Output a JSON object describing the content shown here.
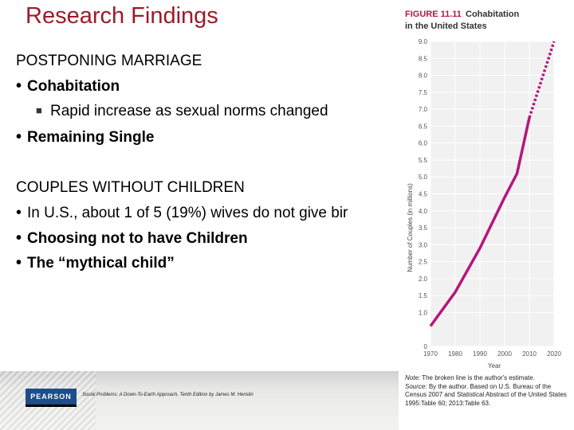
{
  "slide": {
    "title": "Research Findings",
    "section1": "POSTPONING MARRIAGE",
    "b1": "Cohabitation",
    "b1_sub": "Rapid increase as sexual norms changed",
    "b2": "Remaining Single",
    "section2": "COUPLES WITHOUT CHILDREN",
    "b3": "In U.S., about 1 of 5 (19%) wives do not give bir",
    "b4": "Choosing not to have Children",
    "b5": "The “mythical child”"
  },
  "footer": {
    "publisher": "PEARSON",
    "credit": "Social Problems: A Down-To-Earth Approach, Tenth Edition by James M. Henslin"
  },
  "figure": {
    "label": "FIGURE 11.11",
    "title_a": "Cohabitation",
    "title_b": "in the United States",
    "note_label": "Note:",
    "note": "The broken line is the author's estimate.",
    "source_label": "Source:",
    "source": "By the author. Based on U.S. Bureau of the Census 2007 and Statistical Abstract of the United States 1995:Table 60; 2013:Table 63."
  },
  "chart_data": {
    "type": "line",
    "xlabel": "Year",
    "ylabel": "Number of Couples (in millions)",
    "xlim": [
      1970,
      2020
    ],
    "ylim": [
      0,
      9.0
    ],
    "x_ticks": [
      "1970",
      "1980",
      "1990",
      "2000",
      "2010",
      "2020"
    ],
    "y_ticks": [
      "0",
      "1.0",
      "1.5",
      "2.0",
      "2.5",
      "3.0",
      "3.5",
      "4.0",
      "4.5",
      "5.0",
      "5.5",
      "6.0",
      "6.5",
      "7.0",
      "7.5",
      "8.0",
      "8.5",
      "9.0"
    ],
    "line_color": "#b5177d",
    "series": [
      {
        "style": "solid",
        "x": [
          1970,
          1980,
          1990,
          2000,
          2005,
          2010
        ],
        "y": [
          0.6,
          1.6,
          2.9,
          4.4,
          5.1,
          6.75
        ]
      },
      {
        "style": "dashed",
        "x": [
          2010,
          2020
        ],
        "y": [
          6.75,
          9.0
        ]
      }
    ]
  }
}
